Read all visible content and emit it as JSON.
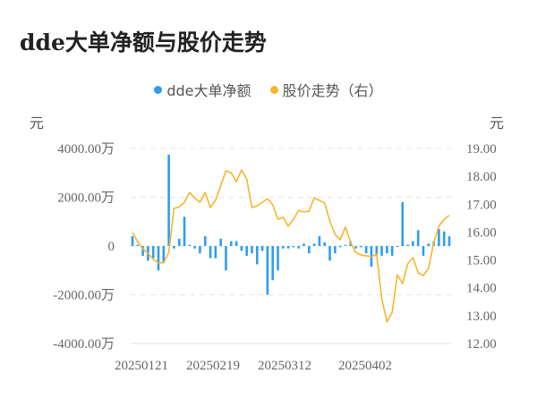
{
  "title": "dde大单净额与股价走势",
  "legend": [
    {
      "label": "dde大单净额",
      "color": "#2E9DF0"
    },
    {
      "label": "股价走势（右）",
      "color": "#F7B52C"
    }
  ],
  "axes": {
    "left_unit": "元",
    "right_unit": "元",
    "left_ticks": [
      "4000.00万",
      "2000.00万",
      "0",
      "-2000.00万",
      "-4000.00万"
    ],
    "right_ticks": [
      "19.00",
      "18.00",
      "17.00",
      "16.00",
      "15.00",
      "14.00",
      "13.00",
      "12.00"
    ],
    "x_ticks": [
      "20250121",
      "20250219",
      "20250312",
      "20250402"
    ]
  },
  "chart_data": {
    "type": "bar+line",
    "title": "dde大单净额与股价走势",
    "xlabel": "",
    "ylabel_left": "元",
    "ylabel_right": "元",
    "ylim_left": [
      -4000,
      4000
    ],
    "ylim_right": [
      12,
      19
    ],
    "left_unit_suffix": "万",
    "grid": true,
    "legend_position": "top",
    "x_tick_labels": [
      "20250121",
      "20250219",
      "20250312",
      "20250402"
    ],
    "series": [
      {
        "name": "dde大单净额",
        "type": "bar",
        "axis": "left",
        "color": "#2E9DF0",
        "values": [
          400,
          50,
          -400,
          -600,
          -500,
          -1000,
          -700,
          3750,
          -100,
          300,
          1200,
          50,
          -100,
          -300,
          400,
          -500,
          -500,
          300,
          -1000,
          200,
          200,
          -200,
          -400,
          -300,
          -750,
          -200,
          -2000,
          -1400,
          -1000,
          -100,
          -100,
          -50,
          -100,
          100,
          -300,
          100,
          400,
          150,
          -600,
          -300,
          -50,
          50,
          200,
          -100,
          -50,
          -300,
          -850,
          -400,
          -400,
          -300,
          -400,
          0,
          1800,
          50,
          200,
          650,
          -400,
          100,
          200,
          700,
          600,
          400
        ]
      },
      {
        "name": "股价走势（右）",
        "type": "line",
        "axis": "right",
        "color": "#F7B52C",
        "values": [
          15.98,
          15.66,
          15.4,
          15.24,
          15.02,
          14.9,
          14.9,
          15.27,
          16.85,
          16.9,
          17.07,
          17.42,
          17.23,
          17.07,
          17.42,
          16.88,
          17.14,
          17.68,
          18.2,
          18.13,
          17.81,
          18.23,
          17.9,
          16.88,
          16.94,
          17.07,
          17.2,
          16.98,
          16.46,
          16.53,
          16.21,
          16.46,
          16.78,
          16.72,
          16.75,
          17.23,
          17.14,
          17.04,
          16.4,
          15.92,
          15.72,
          16.18,
          15.63,
          15.27,
          15.18,
          15.15,
          15.12,
          15.21,
          13.6,
          12.77,
          13.12,
          14.47,
          14.15,
          14.86,
          15.08,
          14.54,
          14.44,
          14.7,
          15.63,
          16.21,
          16.46,
          16.6
        ]
      }
    ]
  }
}
